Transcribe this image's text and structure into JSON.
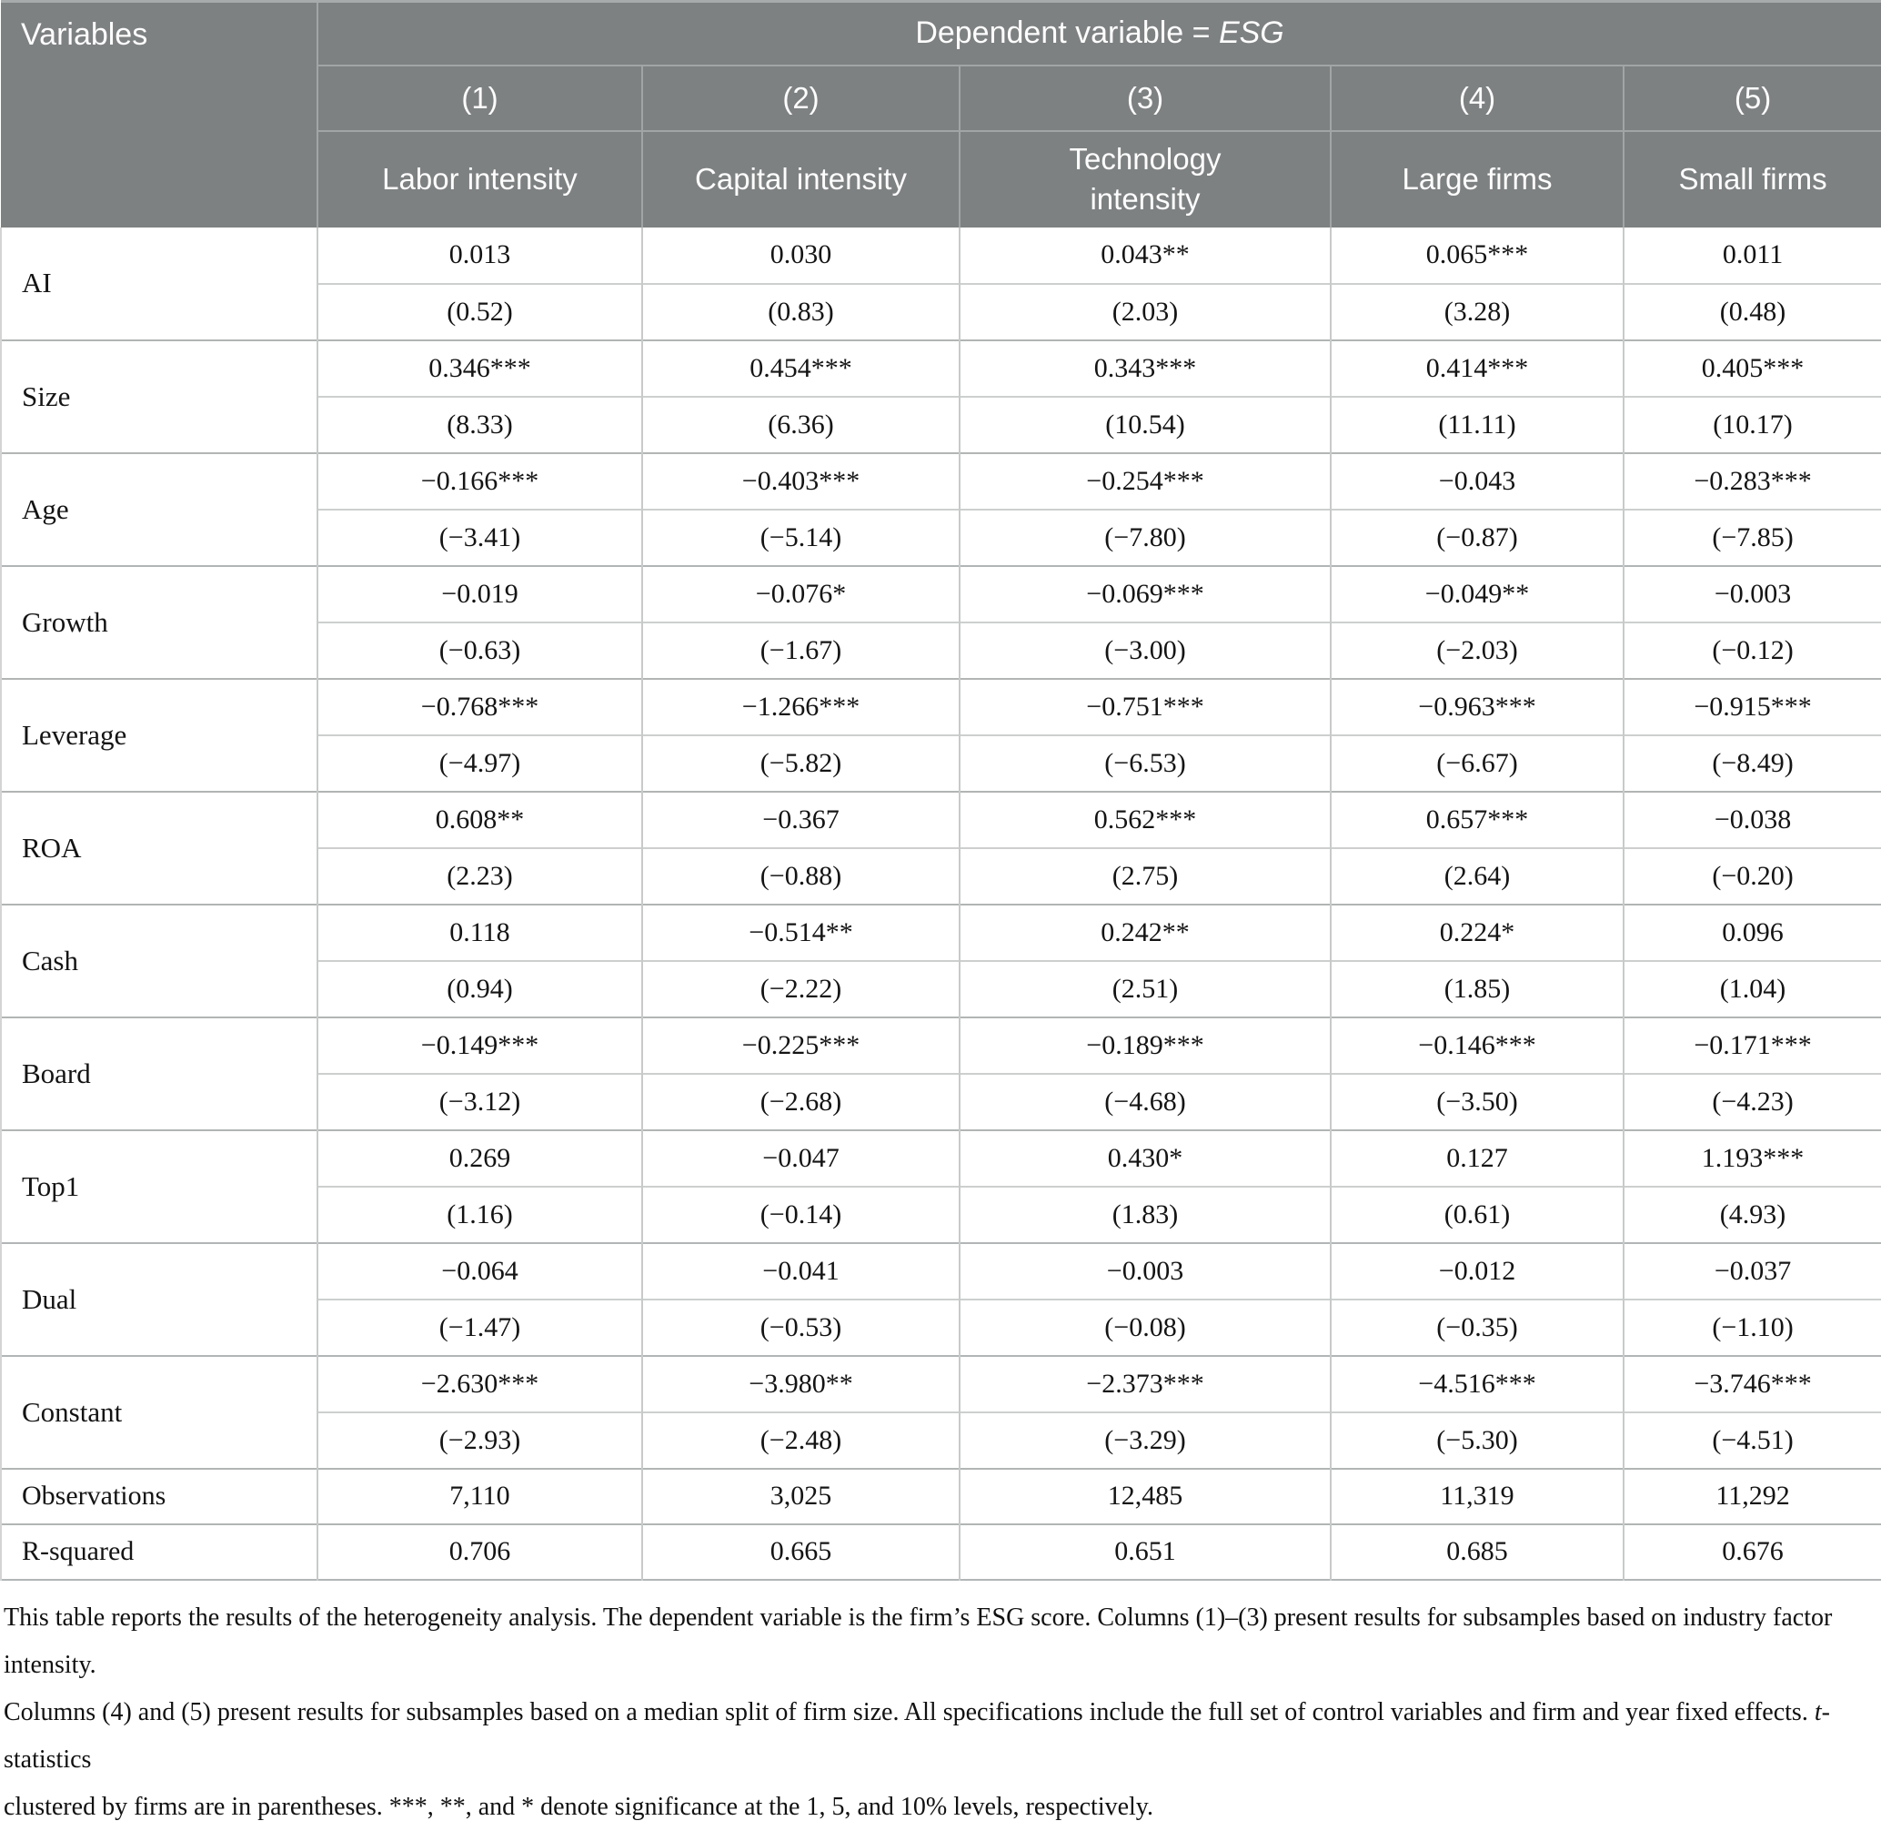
{
  "colors": {
    "header_bg": "#7e8182",
    "header_text": "#fdfdfd",
    "header_line": "#a2a5a5",
    "grid_line": "#c8caca",
    "group_line": "#b2b5b5",
    "body_text": "#141414"
  },
  "table": {
    "corner_header": "Variables",
    "dep_var_prefix": "Dependent variable = ",
    "dep_var_name": "ESG",
    "column_numbers": [
      "(1)",
      "(2)",
      "(3)",
      "(4)",
      "(5)"
    ],
    "column_labels": [
      "Labor intensity",
      "Capital intensity",
      "Technology intensity",
      "Large firms",
      "Small firms"
    ],
    "rows": [
      {
        "label": "AI",
        "coefs": [
          "0.013",
          "0.030",
          "0.043**",
          "0.065***",
          "0.011"
        ],
        "tstats": [
          "(0.52)",
          "(0.83)",
          "(2.03)",
          "(3.28)",
          "(0.48)"
        ]
      },
      {
        "label": "Size",
        "coefs": [
          "0.346***",
          "0.454***",
          "0.343***",
          "0.414***",
          "0.405***"
        ],
        "tstats": [
          "(8.33)",
          "(6.36)",
          "(10.54)",
          "(11.11)",
          "(10.17)"
        ]
      },
      {
        "label": "Age",
        "coefs": [
          "−0.166***",
          "−0.403***",
          "−0.254***",
          "−0.043",
          "−0.283***"
        ],
        "tstats": [
          "(−3.41)",
          "(−5.14)",
          "(−7.80)",
          "(−0.87)",
          "(−7.85)"
        ]
      },
      {
        "label": "Growth",
        "coefs": [
          "−0.019",
          "−0.076*",
          "−0.069***",
          "−0.049**",
          "−0.003"
        ],
        "tstats": [
          "(−0.63)",
          "(−1.67)",
          "(−3.00)",
          "(−2.03)",
          "(−0.12)"
        ]
      },
      {
        "label": "Leverage",
        "coefs": [
          "−0.768***",
          "−1.266***",
          "−0.751***",
          "−0.963***",
          "−0.915***"
        ],
        "tstats": [
          "(−4.97)",
          "(−5.82)",
          "(−6.53)",
          "(−6.67)",
          "(−8.49)"
        ]
      },
      {
        "label": "ROA",
        "coefs": [
          "0.608**",
          "−0.367",
          "0.562***",
          "0.657***",
          "−0.038"
        ],
        "tstats": [
          "(2.23)",
          "(−0.88)",
          "(2.75)",
          "(2.64)",
          "(−0.20)"
        ]
      },
      {
        "label": "Cash",
        "coefs": [
          "0.118",
          "−0.514**",
          "0.242**",
          "0.224*",
          "0.096"
        ],
        "tstats": [
          "(0.94)",
          "(−2.22)",
          "(2.51)",
          "(1.85)",
          "(1.04)"
        ]
      },
      {
        "label": "Board",
        "coefs": [
          "−0.149***",
          "−0.225***",
          "−0.189***",
          "−0.146***",
          "−0.171***"
        ],
        "tstats": [
          "(−3.12)",
          "(−2.68)",
          "(−4.68)",
          "(−3.50)",
          "(−4.23)"
        ]
      },
      {
        "label": "Top1",
        "coefs": [
          "0.269",
          "−0.047",
          "0.430*",
          "0.127",
          "1.193***"
        ],
        "tstats": [
          "(1.16)",
          "(−0.14)",
          "(1.83)",
          "(0.61)",
          "(4.93)"
        ]
      },
      {
        "label": "Dual",
        "coefs": [
          "−0.064",
          "−0.041",
          "−0.003",
          "−0.012",
          "−0.037"
        ],
        "tstats": [
          "(−1.47)",
          "(−0.53)",
          "(−0.08)",
          "(−0.35)",
          "(−1.10)"
        ]
      },
      {
        "label": "Constant",
        "coefs": [
          "−2.630***",
          "−3.980**",
          "−2.373***",
          "−4.516***",
          "−3.746***"
        ],
        "tstats": [
          "(−2.93)",
          "(−2.48)",
          "(−3.29)",
          "(−5.30)",
          "(−4.51)"
        ]
      }
    ],
    "summary_rows": [
      {
        "label": "Observations",
        "values": [
          "7,110",
          "3,025",
          "12,485",
          "11,319",
          "11,292"
        ]
      },
      {
        "label": "R-squared",
        "values": [
          "0.706",
          "0.665",
          "0.651",
          "0.685",
          "0.676"
        ]
      }
    ]
  },
  "footnote": {
    "line1": "This table reports the results of the heterogeneity analysis. The dependent variable is the firm’s ESG score. Columns (1)–(3) present results for subsamples based on industry factor intensity.",
    "line2_pre": "Columns (4) and (5) present results for subsamples based on a median split of firm size. All specifications include the full set of control variables and firm and year fixed effects. ",
    "line2_italic": "t",
    "line2_post": "-statistics",
    "line3": "clustered by firms are in parentheses. ***, **, and * denote significance at the 1, 5, and 10% levels, respectively."
  }
}
